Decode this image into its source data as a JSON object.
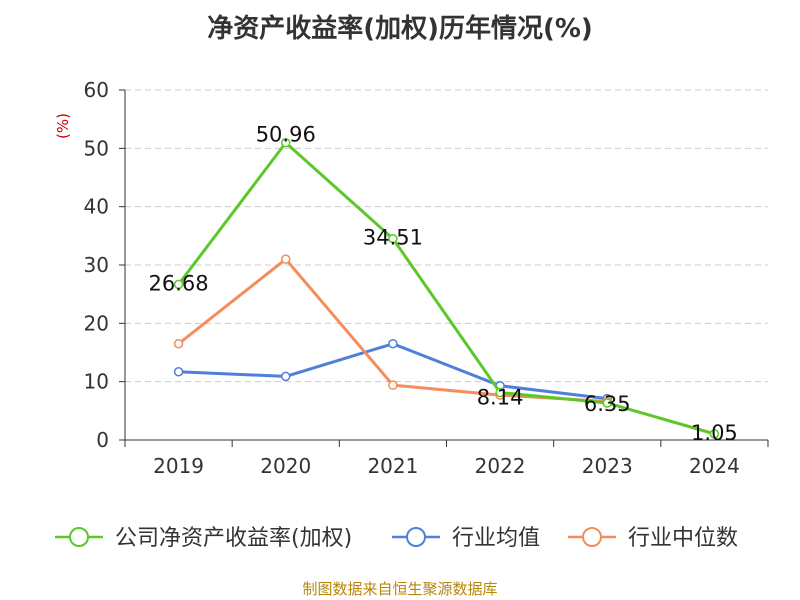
{
  "chart_data": {
    "type": "line",
    "title": "净资产收益率(加权)历年情况(%)",
    "ylabel": "(%)",
    "categories": [
      "2019",
      "2020",
      "2021",
      "2022",
      "2023",
      "2024"
    ],
    "ylim": [
      0,
      60
    ],
    "yticks": [
      0,
      10,
      20,
      30,
      40,
      50,
      60
    ],
    "grid": true,
    "legend_position": "bottom",
    "series": [
      {
        "name": "公司净资产收益率(加权)",
        "color": "#5cc827",
        "values": [
          26.68,
          50.96,
          34.51,
          8.14,
          6.35,
          1.05
        ],
        "labels": [
          "26.68",
          "50.96",
          "34.51",
          "8.14",
          "6.35",
          "1.05"
        ]
      },
      {
        "name": "行业均值",
        "color": "#4f7fda",
        "values": [
          11.7,
          10.9,
          16.5,
          9.3,
          7.1,
          null
        ]
      },
      {
        "name": "行业中位数",
        "color": "#f48c5c",
        "values": [
          16.5,
          31.0,
          9.4,
          7.7,
          6.6,
          null
        ]
      }
    ]
  },
  "footer": "制图数据来自恒生聚源数据库"
}
